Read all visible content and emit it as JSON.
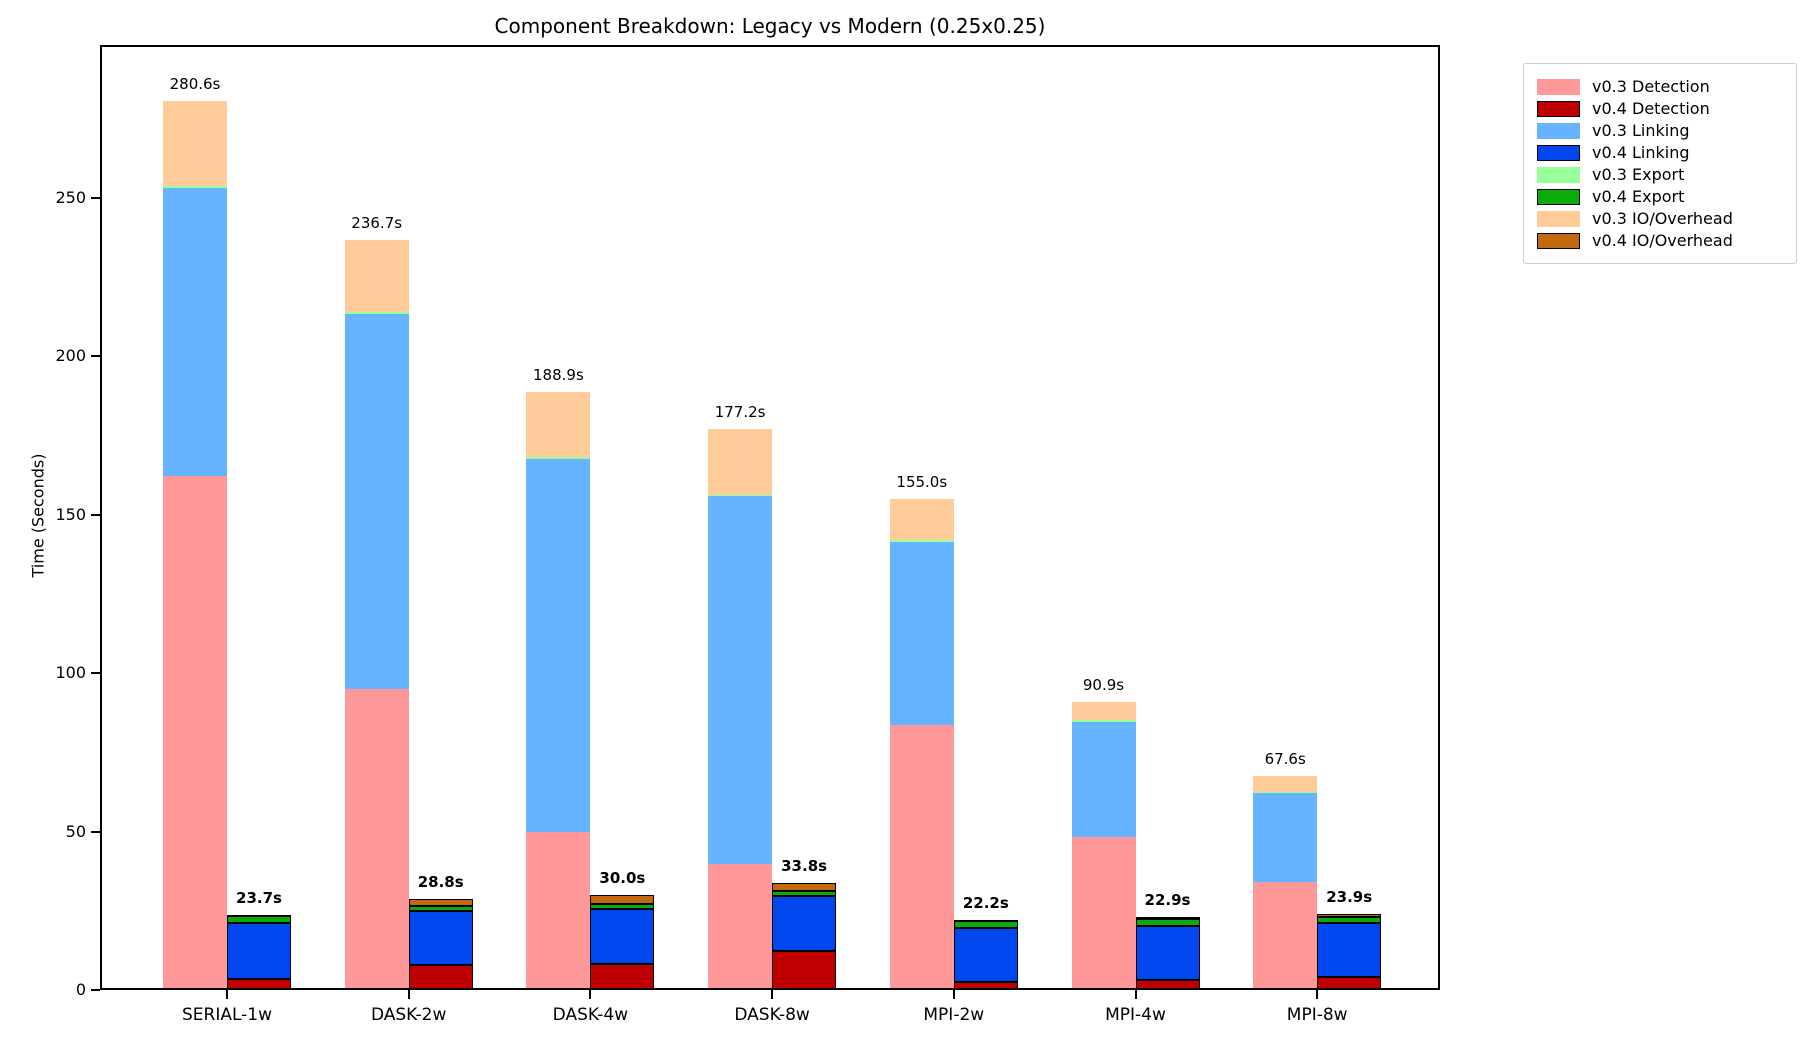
{
  "chart_data": {
    "type": "bar",
    "stacked": true,
    "title": "Component Breakdown: Legacy vs Modern (0.25x0.25)",
    "ylabel": "Time (Seconds)",
    "xlabel": "",
    "grid": false,
    "legend_position": "outside upper right",
    "ylim": [
      0,
      298.3
    ],
    "yticks": [
      0,
      50,
      100,
      150,
      200,
      250
    ],
    "categories": [
      "SERIAL-1w",
      "DASK-2w",
      "DASK-4w",
      "DASK-8w",
      "MPI-2w",
      "MPI-4w",
      "MPI-8w"
    ],
    "stack_order": [
      "detection",
      "linking",
      "export",
      "io_overhead"
    ],
    "series": [
      {
        "name": "v0.3 Detection",
        "variant": "v0.3",
        "key": "detection",
        "color": "#ff9999",
        "edged": false,
        "values": [
          162.1,
          95.0,
          50.0,
          39.8,
          83.6,
          48.3,
          34.1
        ]
      },
      {
        "name": "v0.4 Detection",
        "variant": "v0.4",
        "key": "detection",
        "color": "#c00000",
        "edged": true,
        "values": [
          3.6,
          7.8,
          8.3,
          12.3,
          2.5,
          3.0,
          4.0
        ]
      },
      {
        "name": "v0.3 Linking",
        "variant": "v0.3",
        "key": "linking",
        "color": "#66b3ff",
        "edged": false,
        "values": [
          91.2,
          118.4,
          117.6,
          116.1,
          57.8,
          36.3,
          28.0
        ]
      },
      {
        "name": "v0.4 Linking",
        "variant": "v0.4",
        "key": "linking",
        "color": "#0047f0",
        "edged": true,
        "values": [
          17.6,
          17.0,
          17.4,
          17.3,
          17.2,
          17.2,
          17.1
        ]
      },
      {
        "name": "v0.3 Export",
        "variant": "v0.3",
        "key": "export",
        "color": "#99ff99",
        "edged": false,
        "values": [
          0.5,
          0.5,
          0.5,
          0.5,
          0.5,
          0.5,
          0.5
        ]
      },
      {
        "name": "v0.4 Export",
        "variant": "v0.4",
        "key": "export",
        "color": "#0aab0a",
        "edged": true,
        "values": [
          2.2,
          1.6,
          1.5,
          1.5,
          2.2,
          2.2,
          2.0
        ]
      },
      {
        "name": "v0.3 IO/Overhead",
        "variant": "v0.3",
        "key": "io_overhead",
        "color": "#ffcc99",
        "edged": false,
        "values": [
          26.8,
          22.8,
          20.8,
          20.8,
          13.1,
          5.8,
          5.0
        ]
      },
      {
        "name": "v0.4 IO/Overhead",
        "variant": "v0.4",
        "key": "io_overhead",
        "color": "#c2690f",
        "edged": true,
        "values": [
          0.3,
          2.4,
          2.8,
          2.7,
          0.3,
          0.5,
          0.8
        ]
      }
    ],
    "totals": {
      "v0.3": [
        "280.6s",
        "236.7s",
        "188.9s",
        "177.2s",
        "155.0s",
        "90.9s",
        "67.6s"
      ],
      "v0.4": [
        "23.7s",
        "28.8s",
        "30.0s",
        "33.8s",
        "22.2s",
        "22.9s",
        "23.9s"
      ]
    },
    "axis_color": "#000000",
    "text_color": "#000000"
  }
}
